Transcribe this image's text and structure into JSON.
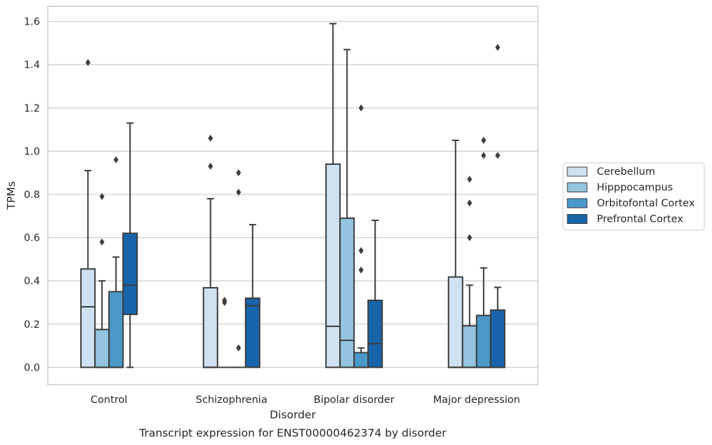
{
  "chart_data": {
    "type": "box",
    "title": "",
    "caption": "Transcript expression for ENST00000462374 by disorder",
    "xlabel": "Disorder",
    "ylabel": "TPMs",
    "ylim": [
      -0.08,
      1.67
    ],
    "yticks": [
      "0.0",
      "0.2",
      "0.4",
      "0.6",
      "0.8",
      "1.0",
      "1.2",
      "1.4",
      "1.6"
    ],
    "ytick_values": [
      0,
      0.2,
      0.4,
      0.6,
      0.8,
      1.0,
      1.2,
      1.4,
      1.6
    ],
    "grid": "horizontal",
    "legend_position": "right",
    "categories": [
      "Control",
      "Schizophrenia",
      "Bipolar disorder",
      "Major depression"
    ],
    "series": [
      {
        "name": "Cerebellum",
        "color": "#d0e1f2",
        "boxes": [
          {
            "q1": 0.0,
            "median": 0.28,
            "q3": 0.455,
            "whislo": 0.0,
            "whishi": 0.91,
            "fliers": [
              1.41
            ]
          },
          {
            "q1": 0.0,
            "median": 0.0,
            "q3": 0.368,
            "whislo": 0.0,
            "whishi": 0.78,
            "fliers": [
              0.93,
              1.06
            ]
          },
          {
            "q1": 0.0,
            "median": 0.19,
            "q3": 0.94,
            "whislo": 0.0,
            "whishi": 1.59,
            "fliers": []
          },
          {
            "q1": 0.0,
            "median": 0.0,
            "q3": 0.418,
            "whislo": 0.0,
            "whishi": 1.05,
            "fliers": []
          }
        ]
      },
      {
        "name": "Hipppocampus",
        "color": "#94c4df",
        "boxes": [
          {
            "q1": 0.0,
            "median": 0.0,
            "q3": 0.175,
            "whislo": 0.0,
            "whishi": 0.4,
            "fliers": [
              0.58,
              0.79
            ]
          },
          {
            "q1": 0.0,
            "median": 0.0,
            "q3": 0.0,
            "whislo": 0.0,
            "whishi": 0.0,
            "fliers": [
              0.3,
              0.31
            ]
          },
          {
            "q1": 0.0,
            "median": 0.125,
            "q3": 0.69,
            "whislo": 0.0,
            "whishi": 1.47,
            "fliers": []
          },
          {
            "q1": 0.0,
            "median": 0.0,
            "q3": 0.192,
            "whislo": 0.0,
            "whishi": 0.38,
            "fliers": [
              0.6,
              0.76,
              0.87
            ]
          }
        ]
      },
      {
        "name": "Orbitofontal Cortex",
        "color": "#4a98c9",
        "boxes": [
          {
            "q1": 0.0,
            "median": 0.0,
            "q3": 0.35,
            "whislo": 0.0,
            "whishi": 0.51,
            "fliers": [
              0.96
            ]
          },
          {
            "q1": 0.0,
            "median": 0.0,
            "q3": 0.0,
            "whislo": 0.0,
            "whishi": 0.0,
            "fliers": [
              0.09,
              0.81,
              0.9
            ]
          },
          {
            "q1": 0.0,
            "median": 0.0,
            "q3": 0.068,
            "whislo": 0.0,
            "whishi": 0.09,
            "fliers": [
              0.45,
              0.54,
              1.2
            ]
          },
          {
            "q1": 0.0,
            "median": 0.0,
            "q3": 0.24,
            "whislo": 0.0,
            "whishi": 0.46,
            "fliers": [
              0.98,
              1.05
            ]
          }
        ]
      },
      {
        "name": "Prefrontal Cortex",
        "color": "#1764ab",
        "boxes": [
          {
            "q1": 0.245,
            "median": 0.38,
            "q3": 0.62,
            "whislo": 0.0,
            "whishi": 1.13,
            "fliers": []
          },
          {
            "q1": 0.0,
            "median": 0.285,
            "q3": 0.32,
            "whislo": 0.0,
            "whishi": 0.66,
            "fliers": []
          },
          {
            "q1": 0.0,
            "median": 0.11,
            "q3": 0.31,
            "whislo": 0.0,
            "whishi": 0.68,
            "fliers": []
          },
          {
            "q1": 0.0,
            "median": 0.0,
            "q3": 0.265,
            "whislo": 0.0,
            "whishi": 0.37,
            "fliers": [
              0.98,
              1.48
            ]
          }
        ]
      }
    ]
  }
}
